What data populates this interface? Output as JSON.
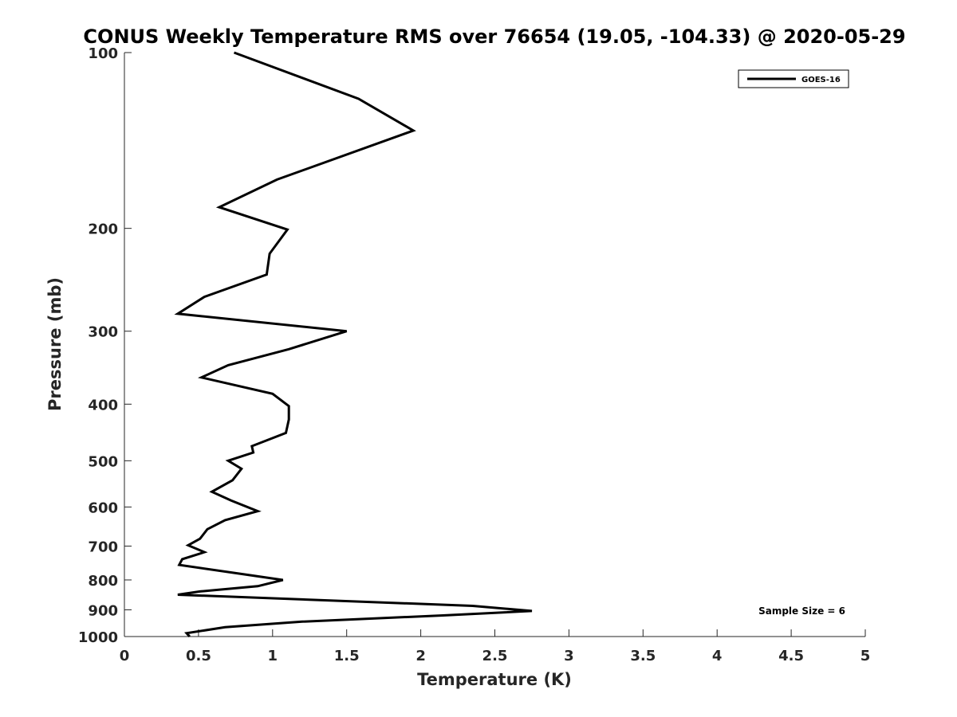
{
  "chart_data": {
    "type": "line",
    "title": "CONUS Weekly Temperature RMS over 76654 (19.05, -104.33) @ 2020-05-29",
    "xlabel": "Temperature (K)",
    "ylabel": "Pressure (mb)",
    "xlim": [
      0,
      5
    ],
    "ylim": [
      100,
      1000
    ],
    "y_scale": "log",
    "y_reversed": true,
    "x_ticks": [
      0,
      0.5,
      1,
      1.5,
      2,
      2.5,
      3,
      3.5,
      4,
      4.5,
      5
    ],
    "x_tick_labels": [
      "0",
      "0.5",
      "1",
      "1.5",
      "2",
      "2.5",
      "3",
      "3.5",
      "4",
      "4.5",
      "5"
    ],
    "y_ticks": [
      100,
      200,
      300,
      400,
      500,
      600,
      700,
      800,
      900,
      1000
    ],
    "y_tick_labels": [
      "100",
      "200",
      "300",
      "400",
      "500",
      "600",
      "700",
      "800",
      "900",
      "1000"
    ],
    "grid": false,
    "legend_position": "top-right",
    "annotation": "Sample Size = 6",
    "series": [
      {
        "name": "GOES-16",
        "color": "#000000",
        "x": [
          0.74,
          1.58,
          1.95,
          1.03,
          0.64,
          1.1,
          0.98,
          0.96,
          0.54,
          0.36,
          1.5,
          1.11,
          0.7,
          0.52,
          1.0,
          1.11,
          1.11,
          1.09,
          0.86,
          0.87,
          0.7,
          0.79,
          0.73,
          0.59,
          0.72,
          0.9,
          0.68,
          0.56,
          0.51,
          0.43,
          0.54,
          0.39,
          0.37,
          0.83,
          1.07,
          0.9,
          0.51,
          0.36,
          2.35,
          2.75,
          2.15,
          1.2,
          0.68,
          0.42,
          0.44
        ],
        "y": [
          100,
          120,
          136,
          165,
          184,
          201,
          221,
          240,
          262,
          280,
          300,
          322,
          343,
          360,
          384,
          403,
          425,
          448,
          472,
          484,
          500,
          516,
          540,
          565,
          585,
          610,
          632,
          655,
          680,
          698,
          717,
          737,
          754,
          784,
          800,
          820,
          837,
          848,
          886,
          904,
          920,
          943,
          964,
          987,
          1000
        ]
      }
    ]
  }
}
